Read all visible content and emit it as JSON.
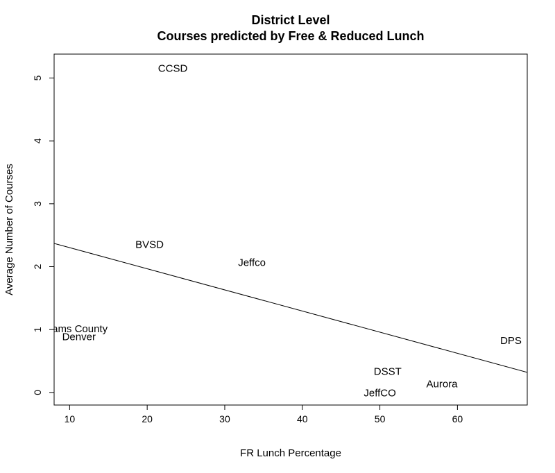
{
  "chart_data": {
    "type": "scatter",
    "title": "District Level",
    "subtitle": "Courses predicted by Free & Reduced Lunch",
    "xlabel": "FR Lunch Percentage",
    "ylabel": "Average Number of Courses",
    "xlim": [
      8,
      69
    ],
    "ylim": [
      -0.2,
      5.38
    ],
    "xticks": [
      10,
      20,
      30,
      40,
      50,
      60
    ],
    "yticks": [
      0,
      1,
      2,
      3,
      4,
      5
    ],
    "points": [
      {
        "label": "CCSD",
        "x": 23.3,
        "y": 5.15
      },
      {
        "label": "BVSD",
        "x": 20.3,
        "y": 2.35
      },
      {
        "label": "Jeffco",
        "x": 33.5,
        "y": 2.06
      },
      {
        "label": "Adams County",
        "x": 10.5,
        "y": 1.01
      },
      {
        "label": "Denver",
        "x": 11.2,
        "y": 0.88
      },
      {
        "label": "DPS",
        "x": 66.9,
        "y": 0.82
      },
      {
        "label": "DSST",
        "x": 51.0,
        "y": 0.33
      },
      {
        "label": "Aurora",
        "x": 58.0,
        "y": 0.13
      },
      {
        "label": "JeffCO",
        "x": 50.0,
        "y": -0.01
      }
    ],
    "fit_line": {
      "x": [
        8,
        69
      ],
      "y": [
        2.37,
        0.32
      ]
    },
    "grid": false,
    "legend": "none"
  }
}
